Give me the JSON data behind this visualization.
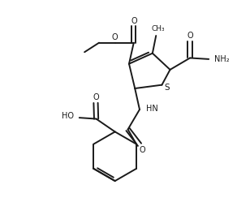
{
  "background_color": "#ffffff",
  "line_color": "#1a1a1a",
  "line_width": 1.4,
  "figsize": [
    2.92,
    2.7
  ],
  "dpi": 100,
  "xlim": [
    0,
    10
  ],
  "ylim": [
    0,
    9.3
  ]
}
